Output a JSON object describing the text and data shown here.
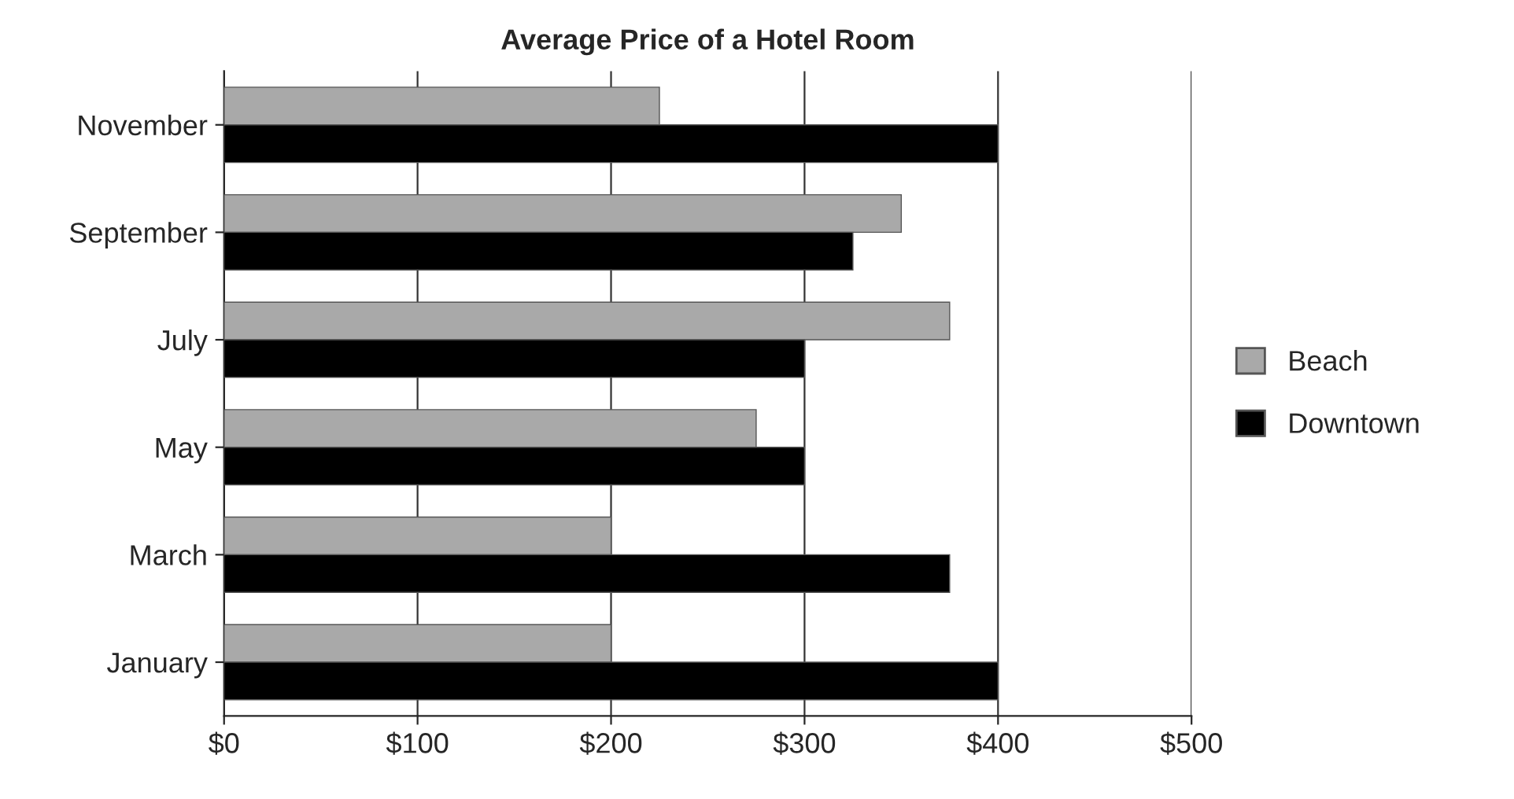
{
  "chart_data": {
    "type": "bar",
    "orientation": "horizontal",
    "title": "Average Price of a Hotel Room",
    "categories": [
      "November",
      "September",
      "July",
      "May",
      "March",
      "January"
    ],
    "series": [
      {
        "name": "Beach",
        "color": "#a9a9a9",
        "values": [
          225,
          350,
          375,
          275,
          200,
          200
        ]
      },
      {
        "name": "Downtown",
        "color": "#000000",
        "values": [
          400,
          325,
          300,
          300,
          375,
          400
        ]
      }
    ],
    "xlim": [
      0,
      500
    ],
    "xticks": [
      {
        "value": 0,
        "label": "$0"
      },
      {
        "value": 100,
        "label": "$100"
      },
      {
        "value": 200,
        "label": "$200"
      },
      {
        "value": 300,
        "label": "$300"
      },
      {
        "value": 400,
        "label": "$400"
      },
      {
        "value": 500,
        "label": "$500"
      }
    ],
    "grid": "x",
    "legend": "right"
  }
}
